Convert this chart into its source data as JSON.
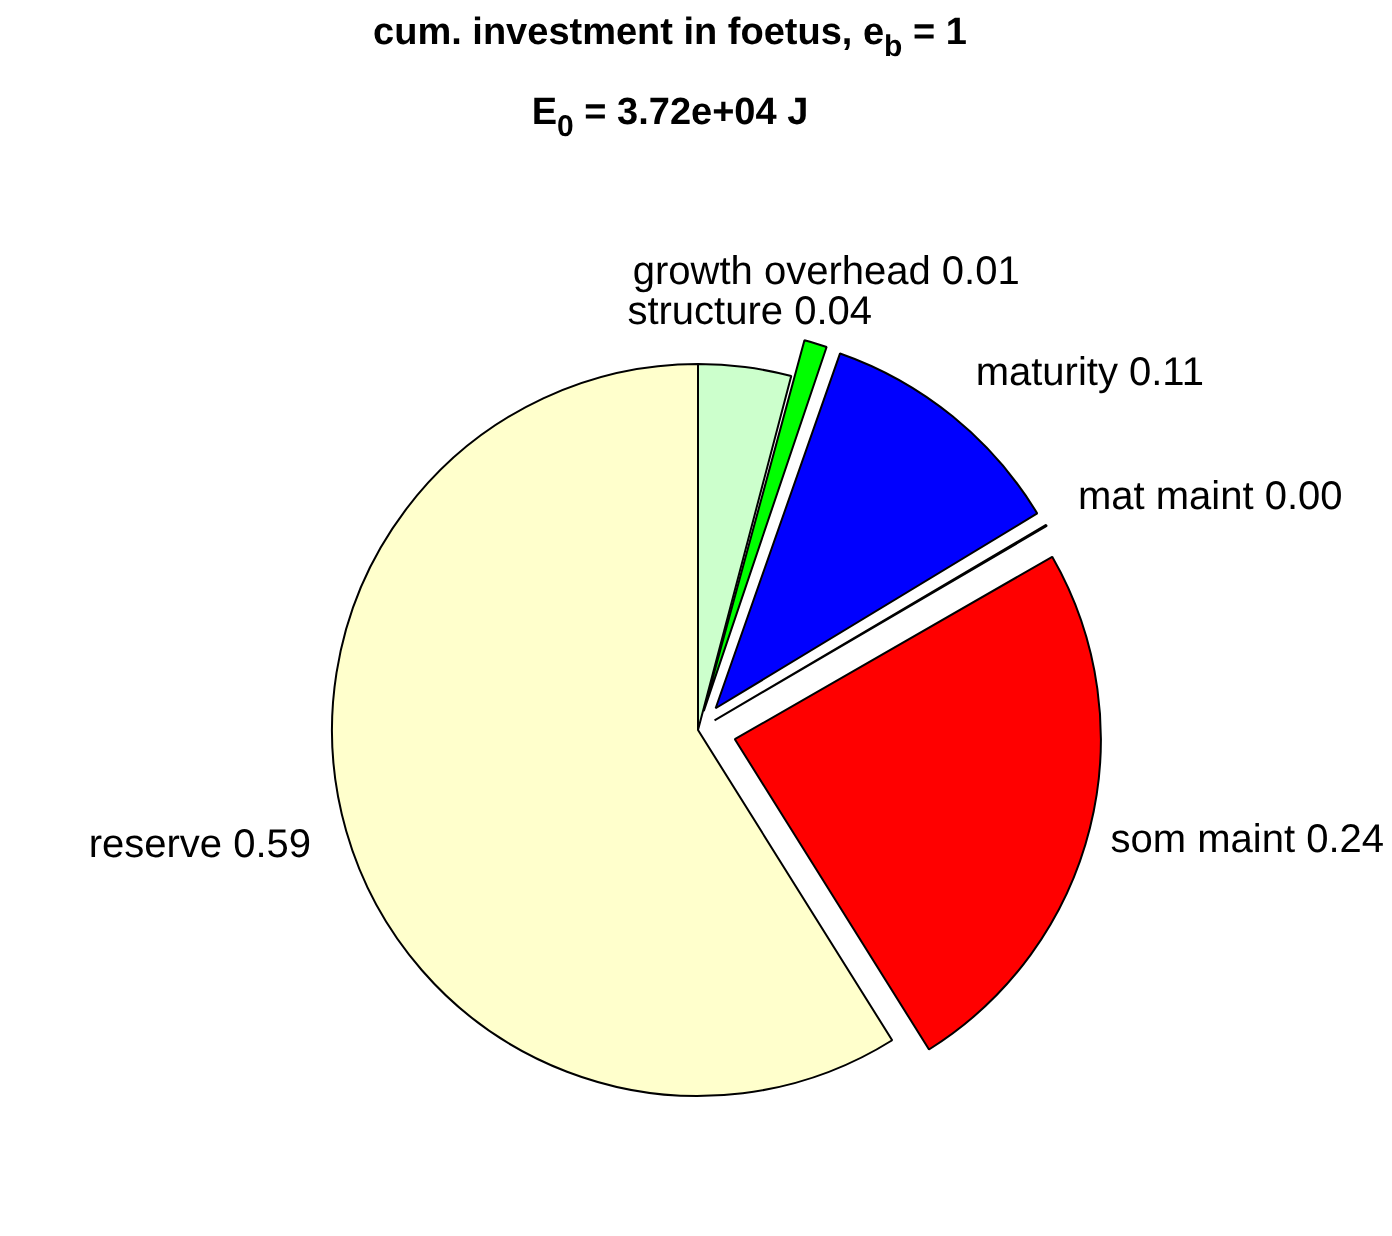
{
  "chart_data": {
    "type": "pie",
    "title": "cum. investment in foetus, e$_{b}$ = 1",
    "subtitle": "E$_{0}$ = 3.72e+04 J",
    "categories": [
      "structure",
      "growth overhead",
      "maturity",
      "mat maint",
      "som maint",
      "reserve"
    ],
    "values": [
      0.041,
      0.012,
      0.111,
      0.003,
      0.244,
      0.589
    ],
    "value_labels": [
      "0.04",
      "0.01",
      "0.11",
      "0.00",
      "0.24",
      "0.59"
    ],
    "colors": [
      "#ccffcc",
      "#00ff00",
      "#0000ff",
      "#ff00ff",
      "#ff0000",
      "#ffffcc"
    ]
  }
}
